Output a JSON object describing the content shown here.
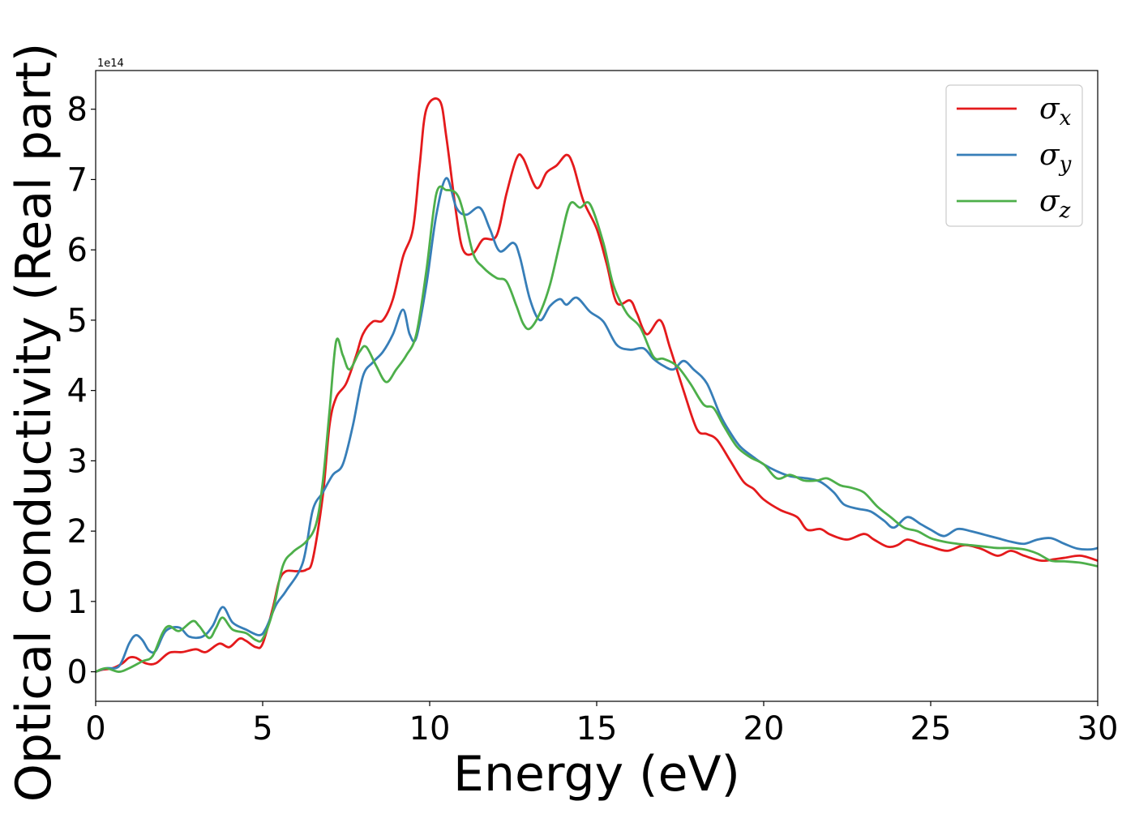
{
  "chart_data": {
    "type": "line",
    "xlabel": "Energy (eV)",
    "ylabel": "Optical conductivity (Real part)",
    "offset_label": "1e14",
    "xlim": [
      0,
      30
    ],
    "ylim": [
      -0.42,
      8.55
    ],
    "x_ticks": [
      0,
      5,
      10,
      15,
      20,
      25,
      30
    ],
    "x_tick_labels": [
      "0",
      "5",
      "10",
      "15",
      "20",
      "25",
      "30"
    ],
    "y_ticks": [
      0,
      1,
      2,
      3,
      4,
      5,
      6,
      7,
      8
    ],
    "y_tick_labels": [
      "0",
      "1",
      "2",
      "3",
      "4",
      "5",
      "6",
      "7",
      "8"
    ],
    "grid": false,
    "legend_position": "top-right",
    "series": [
      {
        "name": "σx",
        "legend_symbol": "σ",
        "legend_sub": "x",
        "color": "#e41a1c",
        "points": [
          [
            0,
            0.0
          ],
          [
            0.2,
            0.03
          ],
          [
            0.5,
            0.05
          ],
          [
            0.8,
            0.12
          ],
          [
            1.0,
            0.2
          ],
          [
            1.2,
            0.2
          ],
          [
            1.5,
            0.12
          ],
          [
            1.8,
            0.12
          ],
          [
            2.2,
            0.27
          ],
          [
            2.6,
            0.28
          ],
          [
            3.0,
            0.32
          ],
          [
            3.3,
            0.28
          ],
          [
            3.7,
            0.4
          ],
          [
            4.0,
            0.35
          ],
          [
            4.3,
            0.47
          ],
          [
            4.5,
            0.44
          ],
          [
            4.8,
            0.35
          ],
          [
            5.0,
            0.4
          ],
          [
            5.3,
            0.9
          ],
          [
            5.5,
            1.3
          ],
          [
            5.7,
            1.43
          ],
          [
            6.0,
            1.43
          ],
          [
            6.3,
            1.45
          ],
          [
            6.5,
            1.6
          ],
          [
            6.8,
            2.5
          ],
          [
            7.0,
            3.5
          ],
          [
            7.2,
            3.9
          ],
          [
            7.5,
            4.1
          ],
          [
            7.8,
            4.5
          ],
          [
            8.0,
            4.8
          ],
          [
            8.3,
            4.98
          ],
          [
            8.6,
            5.0
          ],
          [
            8.9,
            5.3
          ],
          [
            9.2,
            5.9
          ],
          [
            9.5,
            6.3
          ],
          [
            9.7,
            7.2
          ],
          [
            9.9,
            8.0
          ],
          [
            10.3,
            8.12
          ],
          [
            10.5,
            7.6
          ],
          [
            10.8,
            6.5
          ],
          [
            11.0,
            6.0
          ],
          [
            11.3,
            5.95
          ],
          [
            11.6,
            6.15
          ],
          [
            12.0,
            6.2
          ],
          [
            12.3,
            6.8
          ],
          [
            12.6,
            7.3
          ],
          [
            12.8,
            7.3
          ],
          [
            13.2,
            6.88
          ],
          [
            13.5,
            7.1
          ],
          [
            13.8,
            7.2
          ],
          [
            14.1,
            7.35
          ],
          [
            14.3,
            7.2
          ],
          [
            14.6,
            6.7
          ],
          [
            15.0,
            6.3
          ],
          [
            15.3,
            5.8
          ],
          [
            15.6,
            5.25
          ],
          [
            16.0,
            5.28
          ],
          [
            16.2,
            5.1
          ],
          [
            16.5,
            4.8
          ],
          [
            16.9,
            5.0
          ],
          [
            17.2,
            4.6
          ],
          [
            17.6,
            4.0
          ],
          [
            18.0,
            3.45
          ],
          [
            18.3,
            3.38
          ],
          [
            18.6,
            3.3
          ],
          [
            19.0,
            3.0
          ],
          [
            19.4,
            2.7
          ],
          [
            19.7,
            2.6
          ],
          [
            20.0,
            2.45
          ],
          [
            20.5,
            2.3
          ],
          [
            21.0,
            2.2
          ],
          [
            21.3,
            2.02
          ],
          [
            21.7,
            2.03
          ],
          [
            22.0,
            1.95
          ],
          [
            22.5,
            1.88
          ],
          [
            23.0,
            1.96
          ],
          [
            23.3,
            1.88
          ],
          [
            23.7,
            1.78
          ],
          [
            24.0,
            1.8
          ],
          [
            24.3,
            1.88
          ],
          [
            24.7,
            1.82
          ],
          [
            25.0,
            1.78
          ],
          [
            25.5,
            1.72
          ],
          [
            26.0,
            1.8
          ],
          [
            26.5,
            1.75
          ],
          [
            27.0,
            1.65
          ],
          [
            27.4,
            1.72
          ],
          [
            27.8,
            1.65
          ],
          [
            28.3,
            1.58
          ],
          [
            28.7,
            1.6
          ],
          [
            29.0,
            1.62
          ],
          [
            29.5,
            1.65
          ],
          [
            30,
            1.58
          ]
        ]
      },
      {
        "name": "σy",
        "legend_symbol": "σ",
        "legend_sub": "y",
        "color": "#377eb8",
        "points": [
          [
            0,
            0.0
          ],
          [
            0.3,
            0.05
          ],
          [
            0.7,
            0.08
          ],
          [
            1.0,
            0.4
          ],
          [
            1.2,
            0.52
          ],
          [
            1.4,
            0.45
          ],
          [
            1.6,
            0.3
          ],
          [
            1.8,
            0.3
          ],
          [
            2.1,
            0.58
          ],
          [
            2.5,
            0.63
          ],
          [
            2.8,
            0.5
          ],
          [
            3.2,
            0.5
          ],
          [
            3.5,
            0.65
          ],
          [
            3.8,
            0.92
          ],
          [
            4.1,
            0.7
          ],
          [
            4.5,
            0.6
          ],
          [
            4.9,
            0.52
          ],
          [
            5.1,
            0.62
          ],
          [
            5.4,
            0.95
          ],
          [
            5.7,
            1.15
          ],
          [
            6.2,
            1.55
          ],
          [
            6.5,
            2.3
          ],
          [
            6.8,
            2.55
          ],
          [
            7.1,
            2.8
          ],
          [
            7.4,
            2.95
          ],
          [
            7.7,
            3.5
          ],
          [
            8.0,
            4.2
          ],
          [
            8.3,
            4.4
          ],
          [
            8.6,
            4.55
          ],
          [
            8.9,
            4.8
          ],
          [
            9.2,
            5.15
          ],
          [
            9.4,
            4.8
          ],
          [
            9.6,
            4.75
          ],
          [
            9.9,
            5.5
          ],
          [
            10.2,
            6.5
          ],
          [
            10.5,
            7.02
          ],
          [
            10.8,
            6.6
          ],
          [
            11.1,
            6.5
          ],
          [
            11.5,
            6.6
          ],
          [
            11.8,
            6.3
          ],
          [
            12.1,
            5.98
          ],
          [
            12.5,
            6.1
          ],
          [
            12.7,
            5.9
          ],
          [
            13.0,
            5.3
          ],
          [
            13.3,
            5.0
          ],
          [
            13.6,
            5.2
          ],
          [
            13.9,
            5.3
          ],
          [
            14.1,
            5.22
          ],
          [
            14.4,
            5.32
          ],
          [
            14.8,
            5.12
          ],
          [
            15.2,
            4.98
          ],
          [
            15.6,
            4.65
          ],
          [
            16.0,
            4.58
          ],
          [
            16.4,
            4.6
          ],
          [
            16.7,
            4.45
          ],
          [
            17.0,
            4.35
          ],
          [
            17.3,
            4.3
          ],
          [
            17.6,
            4.42
          ],
          [
            17.9,
            4.3
          ],
          [
            18.3,
            4.1
          ],
          [
            18.7,
            3.65
          ],
          [
            19.0,
            3.4
          ],
          [
            19.3,
            3.2
          ],
          [
            19.7,
            3.05
          ],
          [
            20.0,
            2.95
          ],
          [
            20.4,
            2.85
          ],
          [
            20.8,
            2.78
          ],
          [
            21.3,
            2.75
          ],
          [
            21.7,
            2.7
          ],
          [
            22.1,
            2.55
          ],
          [
            22.4,
            2.38
          ],
          [
            22.8,
            2.32
          ],
          [
            23.2,
            2.28
          ],
          [
            23.6,
            2.15
          ],
          [
            23.9,
            2.05
          ],
          [
            24.3,
            2.2
          ],
          [
            24.7,
            2.1
          ],
          [
            25.0,
            2.02
          ],
          [
            25.4,
            1.93
          ],
          [
            25.8,
            2.03
          ],
          [
            26.2,
            2.0
          ],
          [
            26.6,
            1.95
          ],
          [
            27.0,
            1.9
          ],
          [
            27.4,
            1.85
          ],
          [
            27.8,
            1.82
          ],
          [
            28.2,
            1.88
          ],
          [
            28.6,
            1.9
          ],
          [
            29.0,
            1.82
          ],
          [
            29.4,
            1.75
          ],
          [
            29.8,
            1.74
          ],
          [
            30,
            1.76
          ]
        ]
      },
      {
        "name": "σz",
        "legend_symbol": "σ",
        "legend_sub": "z",
        "color": "#4daf4a",
        "points": [
          [
            0,
            0.0
          ],
          [
            0.3,
            0.05
          ],
          [
            0.7,
            0.0
          ],
          [
            1.0,
            0.05
          ],
          [
            1.4,
            0.15
          ],
          [
            1.7,
            0.22
          ],
          [
            2.0,
            0.55
          ],
          [
            2.2,
            0.65
          ],
          [
            2.5,
            0.58
          ],
          [
            2.9,
            0.72
          ],
          [
            3.1,
            0.65
          ],
          [
            3.4,
            0.48
          ],
          [
            3.6,
            0.62
          ],
          [
            3.8,
            0.77
          ],
          [
            4.1,
            0.6
          ],
          [
            4.5,
            0.55
          ],
          [
            4.8,
            0.45
          ],
          [
            5.0,
            0.47
          ],
          [
            5.3,
            0.85
          ],
          [
            5.6,
            1.5
          ],
          [
            5.9,
            1.7
          ],
          [
            6.3,
            1.85
          ],
          [
            6.6,
            2.1
          ],
          [
            6.8,
            2.7
          ],
          [
            7.0,
            3.7
          ],
          [
            7.2,
            4.7
          ],
          [
            7.4,
            4.5
          ],
          [
            7.6,
            4.3
          ],
          [
            7.9,
            4.55
          ],
          [
            8.1,
            4.62
          ],
          [
            8.4,
            4.35
          ],
          [
            8.7,
            4.12
          ],
          [
            9.0,
            4.3
          ],
          [
            9.3,
            4.5
          ],
          [
            9.6,
            4.8
          ],
          [
            9.9,
            5.7
          ],
          [
            10.2,
            6.8
          ],
          [
            10.5,
            6.85
          ],
          [
            10.8,
            6.8
          ],
          [
            11.0,
            6.55
          ],
          [
            11.3,
            5.95
          ],
          [
            11.6,
            5.75
          ],
          [
            12.0,
            5.6
          ],
          [
            12.3,
            5.55
          ],
          [
            12.6,
            5.2
          ],
          [
            12.8,
            4.95
          ],
          [
            13.0,
            4.88
          ],
          [
            13.3,
            5.1
          ],
          [
            13.6,
            5.5
          ],
          [
            13.9,
            6.1
          ],
          [
            14.2,
            6.65
          ],
          [
            14.5,
            6.6
          ],
          [
            14.8,
            6.65
          ],
          [
            15.2,
            6.1
          ],
          [
            15.5,
            5.5
          ],
          [
            15.9,
            5.1
          ],
          [
            16.3,
            4.9
          ],
          [
            16.7,
            4.48
          ],
          [
            17.0,
            4.45
          ],
          [
            17.4,
            4.35
          ],
          [
            17.8,
            4.1
          ],
          [
            18.2,
            3.8
          ],
          [
            18.5,
            3.75
          ],
          [
            18.8,
            3.5
          ],
          [
            19.2,
            3.2
          ],
          [
            19.6,
            3.05
          ],
          [
            20.0,
            2.95
          ],
          [
            20.4,
            2.75
          ],
          [
            20.8,
            2.8
          ],
          [
            21.2,
            2.72
          ],
          [
            21.6,
            2.72
          ],
          [
            21.9,
            2.75
          ],
          [
            22.3,
            2.65
          ],
          [
            22.6,
            2.62
          ],
          [
            23.0,
            2.55
          ],
          [
            23.4,
            2.35
          ],
          [
            23.8,
            2.2
          ],
          [
            24.2,
            2.05
          ],
          [
            24.6,
            2.0
          ],
          [
            25.0,
            1.9
          ],
          [
            25.4,
            1.85
          ],
          [
            25.8,
            1.82
          ],
          [
            26.2,
            1.8
          ],
          [
            26.6,
            1.78
          ],
          [
            27.0,
            1.76
          ],
          [
            27.4,
            1.76
          ],
          [
            27.8,
            1.74
          ],
          [
            28.2,
            1.68
          ],
          [
            28.6,
            1.58
          ],
          [
            29.0,
            1.57
          ],
          [
            29.5,
            1.55
          ],
          [
            30,
            1.5
          ]
        ]
      }
    ]
  }
}
